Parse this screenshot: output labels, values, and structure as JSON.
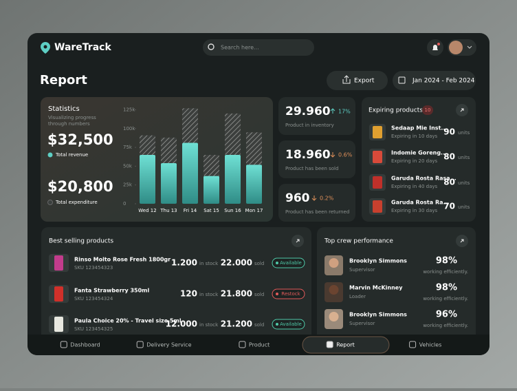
{
  "header": {
    "logo": "WareTrack",
    "search_placeholder": "Search here..."
  },
  "page": {
    "title": "Report",
    "export": "Export",
    "date_range": "Jan 2024 - Feb 2024"
  },
  "statistics": {
    "title": "Statistics",
    "subtitle": [
      "Visualizing progress",
      "through numbers"
    ],
    "revenue": "$32,500",
    "revenue_label": "Total revenue",
    "expenditure": "$20,800",
    "expenditure_label": "Total expenditure",
    "chart": {
      "type": "bar",
      "stacked": true,
      "categories": [
        "Wed 12",
        "Thu 13",
        "Fri 14",
        "Sat 15",
        "Sun 16",
        "Mon 17"
      ],
      "series": [
        {
          "name": "Total revenue",
          "color": "#5ecfc4",
          "values": [
            65000,
            54000,
            81000,
            37000,
            65000,
            52000
          ]
        },
        {
          "name": "Total expenditure",
          "color": "#7a7d7a",
          "values": [
            26000,
            34000,
            46000,
            28000,
            55000,
            43000
          ]
        }
      ],
      "ylim": [
        0,
        130000
      ],
      "yticks": [
        {
          "value": 0,
          "label": "0"
        },
        {
          "value": 25000,
          "label": "25k"
        },
        {
          "value": 50000,
          "label": "50k"
        },
        {
          "value": 75000,
          "label": "75k"
        },
        {
          "value": 100000,
          "label": "100k"
        },
        {
          "value": 125000,
          "label": "125k"
        }
      ]
    }
  },
  "kpis": [
    {
      "value": "29.960",
      "change": "17%",
      "direction": "up",
      "color": "#5ecfc4",
      "label": "Product in inventory"
    },
    {
      "value": "18.960",
      "change": "0.6%",
      "direction": "down",
      "color": "#e0905a",
      "label": "Product has been sold"
    },
    {
      "value": "960",
      "change": "0.2%",
      "direction": "down",
      "color": "#e0905a",
      "label": "Product has been returned"
    }
  ],
  "expiring": {
    "title": "Expiring products",
    "count": "10",
    "items": [
      {
        "name": "Sedaap Mie Inst...",
        "expiry": "Expiring in 10 days",
        "qty": "90",
        "unit": "units",
        "color": "#e0a030"
      },
      {
        "name": "Indomie Goreng...",
        "expiry": "Expiring in 20 days",
        "qty": "80",
        "unit": "units",
        "color": "#d84a3a"
      },
      {
        "name": "Garuda Rosta Rasa...",
        "expiry": "Expiring in 40 days",
        "qty": "80",
        "unit": "units",
        "color": "#c0302a"
      },
      {
        "name": "Garuda Rosta Ra...",
        "expiry": "Expiring in 30 days",
        "qty": "70",
        "unit": "units",
        "color": "#c8402e"
      }
    ]
  },
  "best_selling": {
    "title": "Best selling products",
    "items": [
      {
        "name": "Rinso Molto Rose Fresh 1800gr",
        "sku": "SKU 123454323",
        "stock": "1.200",
        "stock_label": "in stock",
        "sold": "22.000",
        "sold_label": "sold",
        "status": "Available",
        "status_color": "#4fc9a8",
        "color": "#c23c8c"
      },
      {
        "name": "Fanta Strawberry 350ml",
        "sku": "SKU 123454324",
        "stock": "120",
        "stock_label": "in stock",
        "sold": "21.800",
        "sold_label": "sold",
        "status": "Restock",
        "status_color": "#e25a5a",
        "color": "#d0302a"
      },
      {
        "name": "Paula Choice 20% - Travel size 5ml",
        "sku": "SKU 123454325",
        "stock": "12.000",
        "stock_label": "in stock",
        "sold": "21.200",
        "sold_label": "sold",
        "status": "Available",
        "status_color": "#4fc9a8",
        "color": "#e8e8e0"
      }
    ]
  },
  "crew": {
    "title": "Top crew performance",
    "items": [
      {
        "name": "Brooklyn Simmons",
        "role": "Supervisor",
        "score": "98%",
        "score_label": "working efficiently."
      },
      {
        "name": "Marvin McKinney",
        "role": "Loader",
        "score": "98%",
        "score_label": "working efficiently."
      },
      {
        "name": "Brooklyn Simmons",
        "role": "Supervisor",
        "score": "96%",
        "score_label": "working efficiently."
      }
    ]
  },
  "nav": {
    "items": [
      "Dashboard",
      "Delivery Service",
      "Product",
      "Report",
      "Vehicles"
    ],
    "active": 3
  }
}
